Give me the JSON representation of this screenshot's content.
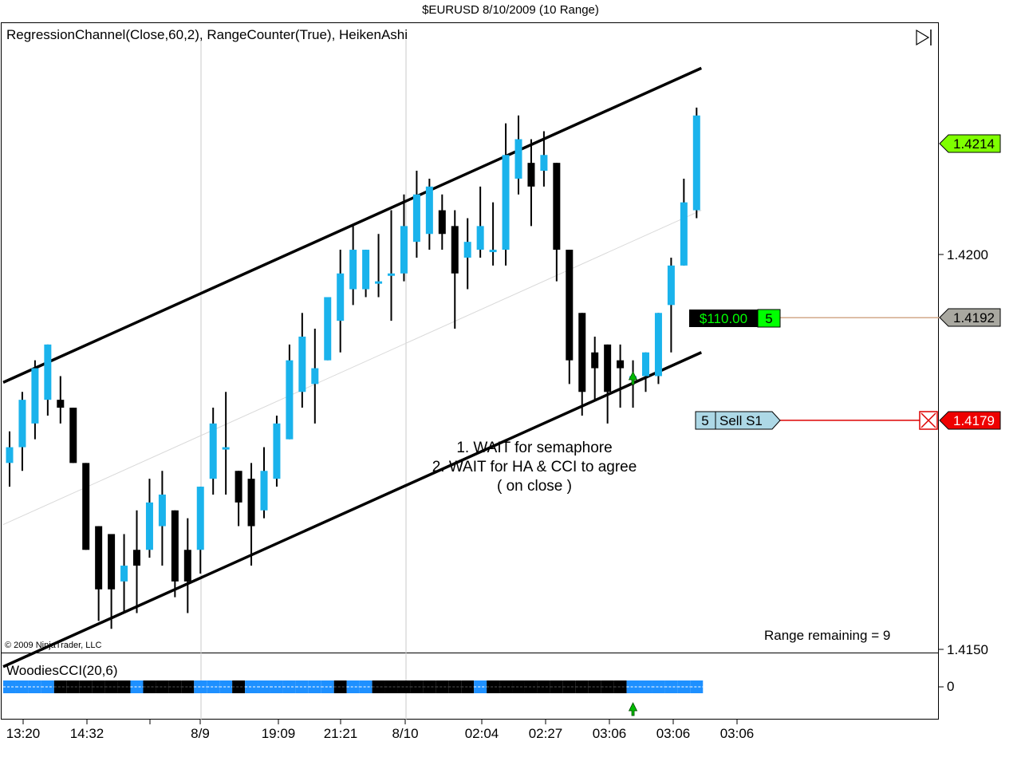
{
  "window": {
    "title": "$EURUSD  8/10/2009 (10 Range)"
  },
  "panel": {
    "indicators_label": "RegressionChannel(Close,60,2), RangeCounter(True), HeikenAshi",
    "copyright": "© 2009 NinjaTrader, LLC",
    "annotation": [
      "1. WAIT for semaphore",
      "2. WAIT for HA & CCI to agree",
      "( on close )"
    ],
    "range_remaining": "Range remaining = 9",
    "cci_label": "WoodiesCCI(20,6)",
    "cci_zero_label": "0"
  },
  "price_tags": {
    "last_price": "1.4214",
    "position_price": "1.4192",
    "pnl": "$110.00",
    "position_qty": "5",
    "order_price": "1.4179",
    "order_qty": "5",
    "order_label": "Sell S1"
  },
  "colors": {
    "up": "#1ab3ec",
    "down": "#000000",
    "last_tag": "#7fff00",
    "position_tag": "#a9a8a0",
    "order_tag": "#ee0000",
    "order_box": "#add8e6",
    "pnl_bg": "#000000",
    "pnl_text": "#00ff00",
    "semaphore": "#00bb00",
    "cci_up": "#1e90ff"
  },
  "chart_data": {
    "type": "candlestick",
    "title": "$EURUSD  8/10/2009 (10 Range)",
    "y_ticks": [
      1.415,
      1.42
    ],
    "y_tick_labels": [
      "1.4150",
      "1.4200"
    ],
    "ylim": [
      1.4148,
      1.4228
    ],
    "x_tick_labels": [
      "13:20",
      "14:32",
      "8/9",
      "19:09",
      "21:21",
      "8/10",
      "02:04",
      "02:27",
      "03:06",
      "03:06",
      "03:06"
    ],
    "bars": [
      {
        "o": 1.41736,
        "h": 1.41776,
        "l": 1.41706,
        "c": 1.41756
      },
      {
        "o": 1.41756,
        "h": 1.41826,
        "l": 1.41726,
        "c": 1.41816
      },
      {
        "o": 1.41786,
        "h": 1.41866,
        "l": 1.41766,
        "c": 1.41856
      },
      {
        "o": 1.41816,
        "h": 1.41886,
        "l": 1.41796,
        "c": 1.41886
      },
      {
        "o": 1.41816,
        "h": 1.41846,
        "l": 1.41786,
        "c": 1.41806
      },
      {
        "o": 1.41806,
        "h": 1.41806,
        "l": 1.41736,
        "c": 1.41736
      },
      {
        "o": 1.41736,
        "h": 1.41736,
        "l": 1.41626,
        "c": 1.41626
      },
      {
        "o": 1.41656,
        "h": 1.41656,
        "l": 1.41536,
        "c": 1.41576
      },
      {
        "o": 1.41646,
        "h": 1.41646,
        "l": 1.41526,
        "c": 1.41576
      },
      {
        "o": 1.41586,
        "h": 1.41646,
        "l": 1.41546,
        "c": 1.41606
      },
      {
        "o": 1.41626,
        "h": 1.41676,
        "l": 1.41546,
        "c": 1.41606
      },
      {
        "o": 1.41626,
        "h": 1.41716,
        "l": 1.41616,
        "c": 1.41686
      },
      {
        "o": 1.41656,
        "h": 1.41726,
        "l": 1.41606,
        "c": 1.41696
      },
      {
        "o": 1.41676,
        "h": 1.41676,
        "l": 1.41566,
        "c": 1.41586
      },
      {
        "o": 1.41626,
        "h": 1.41666,
        "l": 1.41546,
        "c": 1.41586
      },
      {
        "o": 1.41626,
        "h": 1.41706,
        "l": 1.41596,
        "c": 1.41706
      },
      {
        "o": 1.41716,
        "h": 1.41806,
        "l": 1.41696,
        "c": 1.41786
      },
      {
        "o": 1.41756,
        "h": 1.41826,
        "l": 1.41696,
        "c": 1.41756
      },
      {
        "o": 1.41726,
        "h": 1.41726,
        "l": 1.41656,
        "c": 1.41686
      },
      {
        "o": 1.41716,
        "h": 1.41736,
        "l": 1.41606,
        "c": 1.41656
      },
      {
        "o": 1.41676,
        "h": 1.41756,
        "l": 1.41666,
        "c": 1.41726
      },
      {
        "o": 1.41716,
        "h": 1.41796,
        "l": 1.41706,
        "c": 1.41786
      },
      {
        "o": 1.41766,
        "h": 1.41886,
        "l": 1.41766,
        "c": 1.41866
      },
      {
        "o": 1.41826,
        "h": 1.41926,
        "l": 1.41806,
        "c": 1.41896
      },
      {
        "o": 1.41836,
        "h": 1.41906,
        "l": 1.41786,
        "c": 1.41856
      },
      {
        "o": 1.41866,
        "h": 1.41946,
        "l": 1.41866,
        "c": 1.41946
      },
      {
        "o": 1.41916,
        "h": 1.42006,
        "l": 1.41876,
        "c": 1.41976
      },
      {
        "o": 1.41956,
        "h": 1.42036,
        "l": 1.41936,
        "c": 1.42006
      },
      {
        "o": 1.41956,
        "h": 1.42006,
        "l": 1.41946,
        "c": 1.42006
      },
      {
        "o": 1.41966,
        "h": 1.42026,
        "l": 1.41946,
        "c": 1.41966
      },
      {
        "o": 1.41976,
        "h": 1.42056,
        "l": 1.41916,
        "c": 1.41976
      },
      {
        "o": 1.41976,
        "h": 1.42076,
        "l": 1.41966,
        "c": 1.42036
      },
      {
        "o": 1.42016,
        "h": 1.42106,
        "l": 1.41996,
        "c": 1.42076
      },
      {
        "o": 1.42026,
        "h": 1.42096,
        "l": 1.42006,
        "c": 1.42086
      },
      {
        "o": 1.42056,
        "h": 1.42076,
        "l": 1.42006,
        "c": 1.42026
      },
      {
        "o": 1.42036,
        "h": 1.42056,
        "l": 1.41906,
        "c": 1.41976
      },
      {
        "o": 1.41996,
        "h": 1.42046,
        "l": 1.41956,
        "c": 1.42016
      },
      {
        "o": 1.42006,
        "h": 1.42086,
        "l": 1.41996,
        "c": 1.42036
      },
      {
        "o": 1.42006,
        "h": 1.42066,
        "l": 1.41986,
        "c": 1.42006
      },
      {
        "o": 1.42006,
        "h": 1.42166,
        "l": 1.41986,
        "c": 1.42126
      },
      {
        "o": 1.42096,
        "h": 1.42176,
        "l": 1.42076,
        "c": 1.42146
      },
      {
        "o": 1.42116,
        "h": 1.42146,
        "l": 1.42036,
        "c": 1.42086
      },
      {
        "o": 1.42106,
        "h": 1.42156,
        "l": 1.42086,
        "c": 1.42126
      },
      {
        "o": 1.42116,
        "h": 1.42116,
        "l": 1.41966,
        "c": 1.42006
      },
      {
        "o": 1.42006,
        "h": 1.42006,
        "l": 1.41836,
        "c": 1.41866
      },
      {
        "o": 1.41926,
        "h": 1.41926,
        "l": 1.41796,
        "c": 1.41826
      },
      {
        "o": 1.41876,
        "h": 1.41896,
        "l": 1.41816,
        "c": 1.41856
      },
      {
        "o": 1.41886,
        "h": 1.41886,
        "l": 1.41786,
        "c": 1.41826
      },
      {
        "o": 1.41866,
        "h": 1.41886,
        "l": 1.41806,
        "c": 1.41856
      },
      {
        "o": 1.41846,
        "h": 1.41866,
        "l": 1.41806,
        "c": 1.41846
      },
      {
        "o": 1.41846,
        "h": 1.41876,
        "l": 1.41826,
        "c": 1.41876
      },
      {
        "o": 1.41846,
        "h": 1.41926,
        "l": 1.41836,
        "c": 1.41926
      },
      {
        "o": 1.41936,
        "h": 1.41996,
        "l": 1.41876,
        "c": 1.41986
      },
      {
        "o": 1.41986,
        "h": 1.42096,
        "l": 1.41986,
        "c": 1.42066
      },
      {
        "o": 1.42056,
        "h": 1.42186,
        "l": 1.42046,
        "c": 1.42176
      }
    ],
    "channel": [
      {
        "name": "upper",
        "x": [
          0,
          54
        ],
        "y": [
          1.41838,
          1.42236
        ]
      },
      {
        "name": "middle",
        "x": [
          0,
          54
        ],
        "y": [
          1.41658,
          1.42056
        ]
      },
      {
        "name": "lower",
        "x": [
          0,
          54
        ],
        "y": [
          1.41478,
          1.41876
        ]
      }
    ],
    "semaphore_bar": 49,
    "cci_states": [
      "up",
      "up",
      "up",
      "up",
      "down",
      "down",
      "down",
      "down",
      "down",
      "down",
      "up",
      "down",
      "down",
      "down",
      "down",
      "up",
      "up",
      "up",
      "down",
      "up",
      "up",
      "up",
      "up",
      "up",
      "up",
      "up",
      "down",
      "up",
      "up",
      "down",
      "down",
      "down",
      "down",
      "down",
      "down",
      "down",
      "down",
      "up",
      "down",
      "down",
      "down",
      "down",
      "down",
      "down",
      "down",
      "down",
      "down",
      "down",
      "down",
      "up",
      "up",
      "up",
      "up",
      "up",
      "up"
    ],
    "position_price": 1.4192,
    "order_price": 1.4179,
    "last_price": 1.4214
  }
}
